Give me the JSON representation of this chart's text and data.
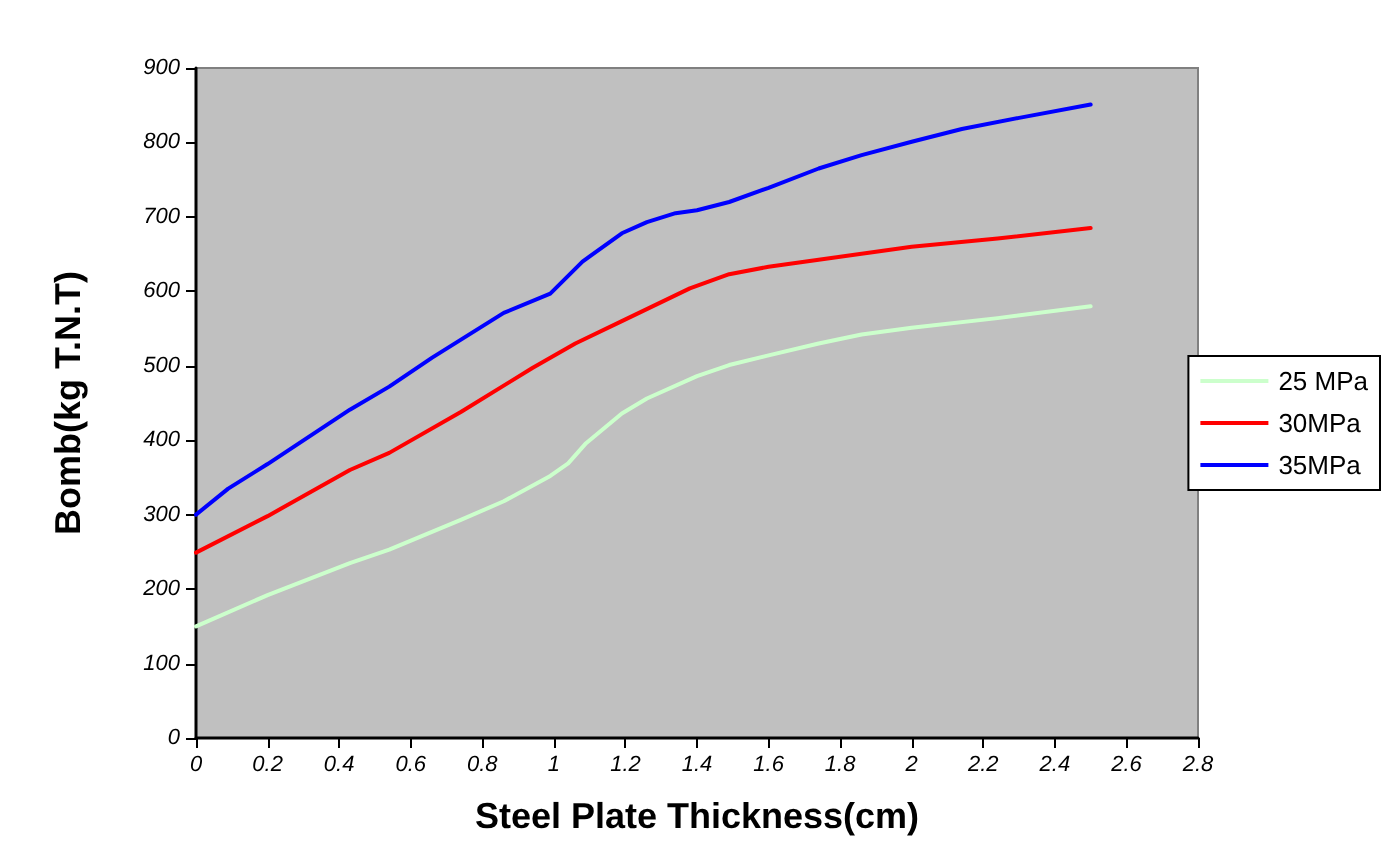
{
  "chart_data": {
    "type": "line",
    "xlabel": "Steel Plate Thickness(cm)",
    "ylabel": "Bomb(kg T.N.T)",
    "xlim": [
      0,
      2.8
    ],
    "xticks": [
      0,
      0.2,
      0.4,
      0.6,
      0.8,
      1,
      1.2,
      1.4,
      1.6,
      1.8,
      2,
      2.2,
      2.4,
      2.6,
      2.8
    ],
    "ylim": [
      0,
      900
    ],
    "yticks": [
      0,
      100,
      200,
      300,
      400,
      500,
      600,
      700,
      800,
      900
    ],
    "grid": false,
    "legend": "right",
    "marker": "none",
    "line_style": "solid",
    "series": [
      {
        "name": "25 MPa",
        "color": "#ccffcc",
        "x": [
          0,
          0.2,
          0.43,
          0.54,
          0.74,
          0.86,
          0.99,
          1.04,
          1.09,
          1.19,
          1.26,
          1.4,
          1.49,
          1.6,
          1.74,
          1.86,
          2,
          2.24,
          2.5
        ],
        "values": [
          150,
          192,
          235,
          253,
          293,
          318,
          352,
          369,
          396,
          436,
          456,
          486,
          501,
          514,
          530,
          542,
          551,
          564,
          580
        ]
      },
      {
        "name": "30MPa",
        "color": "#ff0000",
        "x": [
          0,
          0.2,
          0.43,
          0.54,
          0.74,
          0.94,
          1.06,
          1.19,
          1.38,
          1.49,
          1.6,
          1.78,
          2,
          2.24,
          2.5
        ],
        "values": [
          249,
          298,
          360,
          383,
          438,
          497,
          530,
          560,
          604,
          623,
          633,
          645,
          660,
          671,
          685
        ]
      },
      {
        "name": "35MPa",
        "color": "#0000ff",
        "x": [
          0,
          0.09,
          0.2,
          0.43,
          0.54,
          0.66,
          0.86,
          0.99,
          1.08,
          1.19,
          1.26,
          1.34,
          1.4,
          1.49,
          1.6,
          1.74,
          1.86,
          2,
          2.14,
          2.3,
          2.5
        ],
        "values": [
          300,
          335,
          368,
          441,
          472,
          511,
          571,
          597,
          640,
          678,
          693,
          705,
          709,
          720,
          739,
          765,
          783,
          801,
          818,
          833,
          851
        ]
      }
    ]
  }
}
